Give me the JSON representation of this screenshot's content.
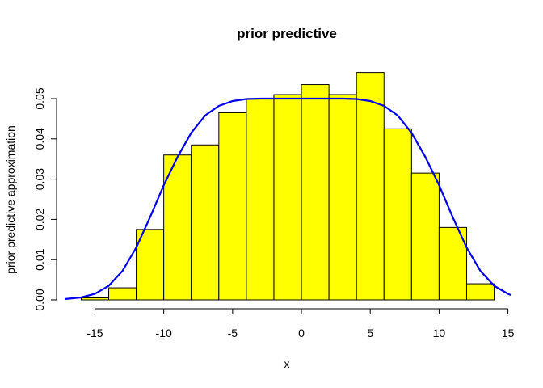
{
  "chart_data": {
    "type": "bar",
    "title": "prior predictive",
    "xlabel": "x",
    "ylabel": "prior predictive approximation",
    "xlim": [
      -17.2,
      15.2
    ],
    "ylim": [
      0,
      0.0565
    ],
    "x_ticks": [
      -15,
      -10,
      -5,
      0,
      5,
      10,
      15
    ],
    "x_tick_labels": [
      "-15",
      "-10",
      "-5",
      "0",
      "5",
      "10",
      "15"
    ],
    "y_ticks": [
      0,
      0.01,
      0.02,
      0.03,
      0.04,
      0.05
    ],
    "y_tick_labels": [
      "0.00",
      "0.01",
      "0.02",
      "0.03",
      "0.04",
      "0.05"
    ],
    "bar_color": "#ffff00",
    "bins": [
      {
        "from": -16,
        "to": -14,
        "density": 0.0005
      },
      {
        "from": -14,
        "to": -12,
        "density": 0.003
      },
      {
        "from": -12,
        "to": -10,
        "density": 0.0175
      },
      {
        "from": -10,
        "to": -8,
        "density": 0.036
      },
      {
        "from": -8,
        "to": -6,
        "density": 0.0385
      },
      {
        "from": -6,
        "to": -4,
        "density": 0.0465
      },
      {
        "from": -4,
        "to": -2,
        "density": 0.05
      },
      {
        "from": -2,
        "to": 0,
        "density": 0.051
      },
      {
        "from": 0,
        "to": 2,
        "density": 0.0535
      },
      {
        "from": 2,
        "to": 4,
        "density": 0.051
      },
      {
        "from": 4,
        "to": 6,
        "density": 0.0565
      },
      {
        "from": 6,
        "to": 8,
        "density": 0.0425
      },
      {
        "from": 8,
        "to": 10,
        "density": 0.0315
      },
      {
        "from": 10,
        "to": 12,
        "density": 0.018
      },
      {
        "from": 12,
        "to": 14,
        "density": 0.004
      }
    ],
    "curve": {
      "color": "#0000ee",
      "x": [
        -17.2,
        -16,
        -15,
        -14,
        -13,
        -12,
        -11,
        -10,
        -9,
        -8,
        -7,
        -6,
        -5,
        -4,
        -3,
        -2,
        -1,
        0,
        1,
        2,
        3,
        4,
        5,
        6,
        7,
        8,
        9,
        10,
        11,
        12,
        13,
        14,
        15,
        15.2
      ],
      "y": [
        0.0002,
        0.0006,
        0.0015,
        0.0035,
        0.0072,
        0.013,
        0.0205,
        0.0285,
        0.0355,
        0.0415,
        0.0458,
        0.0482,
        0.0494,
        0.0499,
        0.05,
        0.05,
        0.05,
        0.05,
        0.05,
        0.05,
        0.05,
        0.0499,
        0.0494,
        0.0482,
        0.0458,
        0.0415,
        0.0355,
        0.0285,
        0.0205,
        0.013,
        0.0072,
        0.0035,
        0.0015,
        0.0012
      ]
    }
  }
}
